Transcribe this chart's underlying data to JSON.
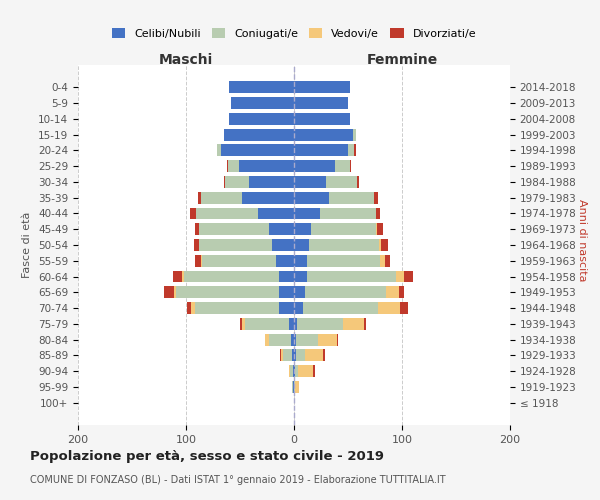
{
  "age_groups": [
    "100+",
    "95-99",
    "90-94",
    "85-89",
    "80-84",
    "75-79",
    "70-74",
    "65-69",
    "60-64",
    "55-59",
    "50-54",
    "45-49",
    "40-44",
    "35-39",
    "30-34",
    "25-29",
    "20-24",
    "15-19",
    "10-14",
    "5-9",
    "0-4"
  ],
  "birth_years": [
    "≤ 1918",
    "1919-1923",
    "1924-1928",
    "1929-1933",
    "1934-1938",
    "1939-1943",
    "1944-1948",
    "1949-1953",
    "1954-1958",
    "1959-1963",
    "1964-1968",
    "1969-1973",
    "1974-1978",
    "1979-1983",
    "1984-1988",
    "1989-1993",
    "1994-1998",
    "1999-2003",
    "2004-2008",
    "2009-2013",
    "2014-2018"
  ],
  "male": {
    "celibi": [
      0,
      1,
      1,
      2,
      3,
      5,
      14,
      14,
      14,
      17,
      20,
      23,
      33,
      48,
      42,
      51,
      68,
      65,
      60,
      58,
      60
    ],
    "coniugati": [
      0,
      1,
      3,
      8,
      20,
      40,
      78,
      95,
      88,
      68,
      68,
      65,
      58,
      38,
      22,
      10,
      3,
      0,
      0,
      0,
      0
    ],
    "vedovi": [
      0,
      0,
      1,
      2,
      4,
      3,
      3,
      2,
      2,
      1,
      0,
      0,
      0,
      0,
      0,
      0,
      0,
      0,
      0,
      0,
      0
    ],
    "divorziati": [
      0,
      0,
      0,
      1,
      0,
      2,
      4,
      9,
      8,
      6,
      5,
      4,
      5,
      3,
      1,
      1,
      0,
      0,
      0,
      0,
      0
    ]
  },
  "female": {
    "nubili": [
      0,
      0,
      1,
      2,
      2,
      3,
      8,
      10,
      12,
      12,
      14,
      16,
      24,
      32,
      30,
      38,
      50,
      55,
      52,
      50,
      52
    ],
    "coniugate": [
      0,
      1,
      3,
      8,
      20,
      42,
      70,
      75,
      82,
      68,
      65,
      60,
      52,
      42,
      28,
      14,
      6,
      2,
      0,
      0,
      0
    ],
    "vedove": [
      0,
      4,
      14,
      17,
      18,
      20,
      20,
      12,
      8,
      4,
      2,
      1,
      0,
      0,
      0,
      0,
      0,
      0,
      0,
      0,
      0
    ],
    "divorziate": [
      0,
      0,
      1,
      2,
      1,
      2,
      8,
      5,
      8,
      5,
      6,
      5,
      4,
      4,
      2,
      1,
      1,
      0,
      0,
      0,
      0
    ]
  },
  "colors": {
    "celibi": "#4472C4",
    "coniugati": "#B8CCB0",
    "vedovi": "#F5C87A",
    "divorziati": "#C0392B"
  },
  "xlim": 200,
  "title": "Popolazione per età, sesso e stato civile - 2019",
  "subtitle": "COMUNE DI FONZASO (BL) - Dati ISTAT 1° gennaio 2019 - Elaborazione TUTTITALIA.IT",
  "ylabel_left": "Fasce di età",
  "ylabel_right": "Anni di nascita",
  "xlabel_left": "Maschi",
  "xlabel_right": "Femmine",
  "background_color": "#f5f5f5",
  "plot_background": "#ffffff"
}
